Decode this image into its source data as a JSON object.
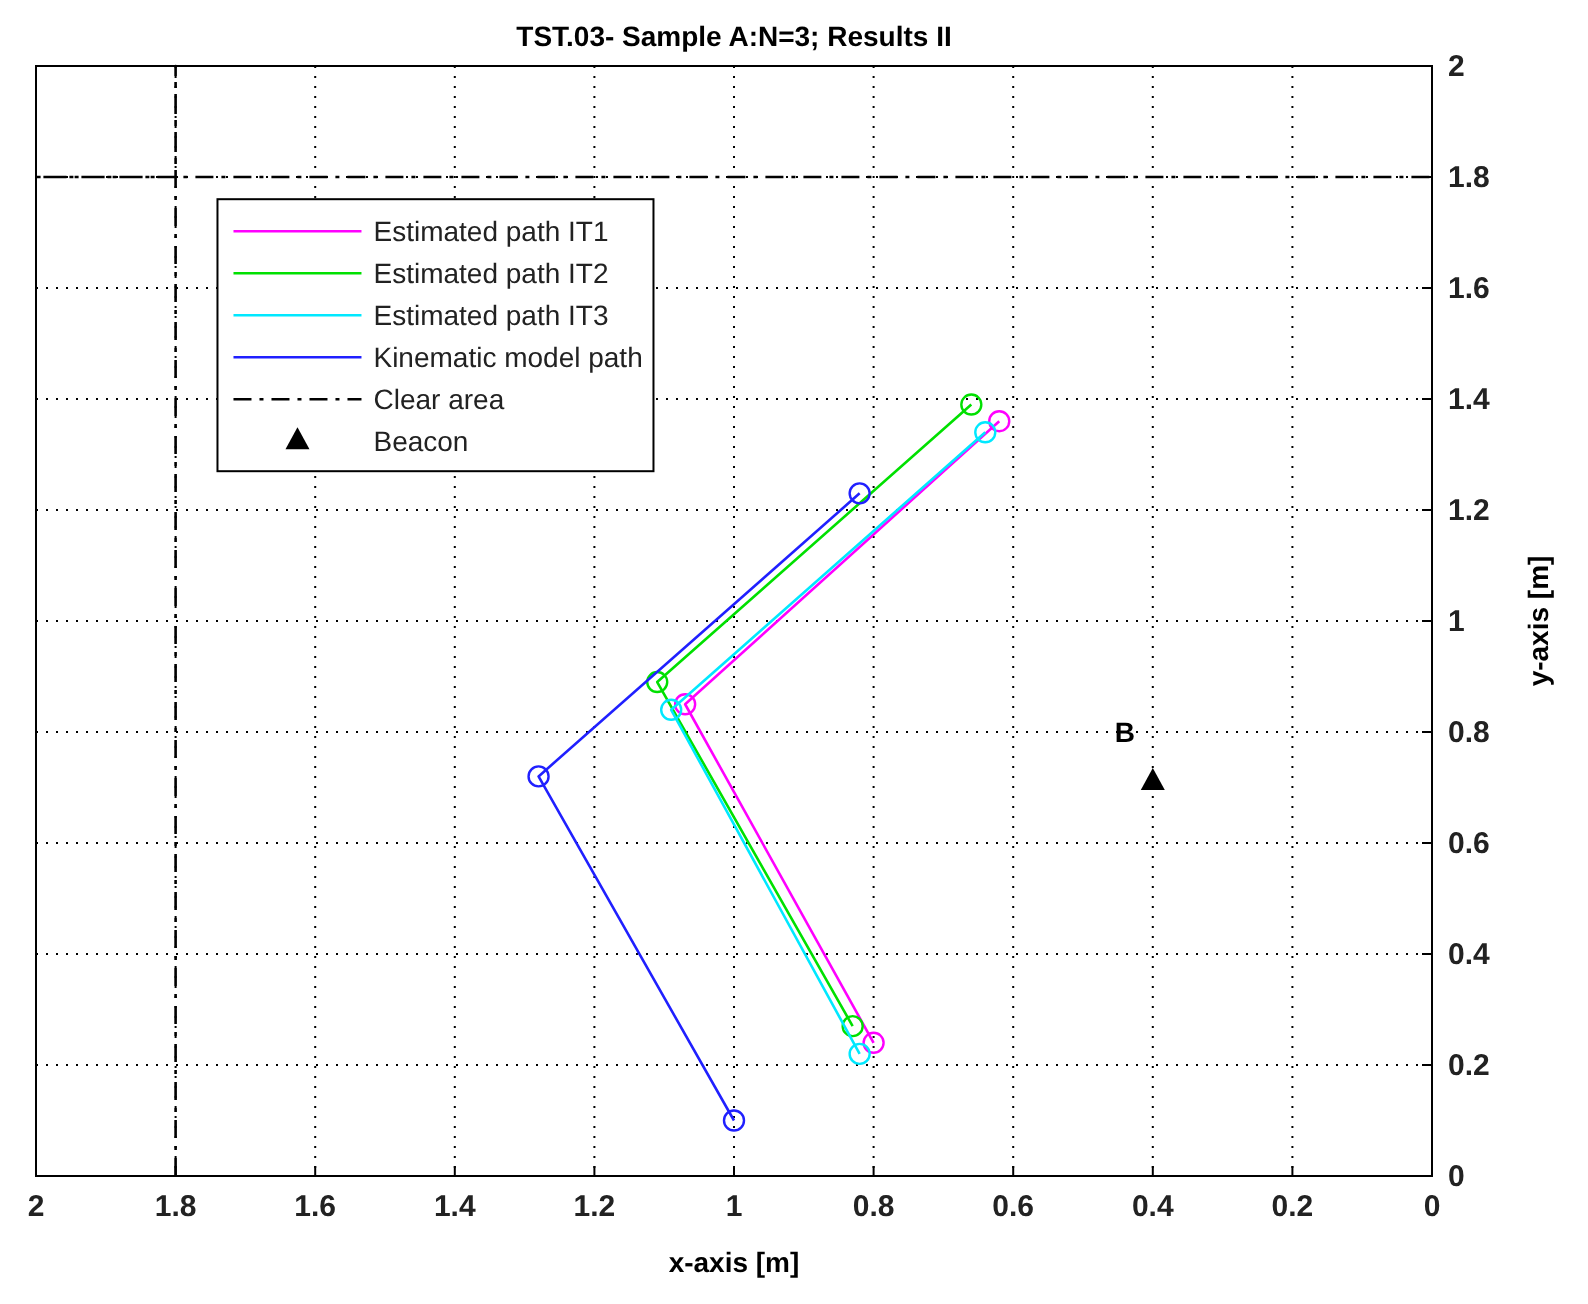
{
  "chart_data": {
    "type": "line",
    "title": "TST.03- Sample A:N=3; Results II",
    "xlabel": "x-axis [m]",
    "ylabel": "y-axis [m]",
    "xlim": [
      2,
      0
    ],
    "ylim": [
      0,
      2
    ],
    "xticks": [
      2,
      1.8,
      1.6,
      1.4,
      1.2,
      1,
      0.8,
      0.6,
      0.4,
      0.2,
      0
    ],
    "yticks": [
      0,
      0.2,
      0.4,
      0.6,
      0.8,
      1,
      1.2,
      1.4,
      1.6,
      1.8,
      2
    ],
    "grid": true,
    "legend": "top left",
    "marker": "circle",
    "line_style": "solid",
    "annotations": [
      "B"
    ],
    "series": [
      {
        "name": "Estimated path IT1",
        "color": "#ff00ff",
        "x": [
          0.8,
          1.07,
          0.62
        ],
        "values": [
          0.24,
          0.85,
          1.36
        ]
      },
      {
        "name": "Estimated path IT2",
        "color": "#00e000",
        "x": [
          0.83,
          1.11,
          0.66
        ],
        "values": [
          0.27,
          0.89,
          1.39
        ]
      },
      {
        "name": "Estimated path IT3",
        "color": "#00e8ff",
        "x": [
          0.82,
          1.09,
          0.64
        ],
        "values": [
          0.22,
          0.84,
          1.34
        ]
      },
      {
        "name": "Kinematic model path",
        "color": "#2020ff",
        "x": [
          1,
          1.28,
          0.82
        ],
        "values": [
          0.1,
          0.72,
          1.23
        ]
      },
      {
        "name": "Clear area",
        "color": "#000000",
        "marker": "none",
        "line_style": "dashdot",
        "x": [
          1.8,
          1.8,
          1.8,
          2,
          0
        ],
        "values": [
          0,
          2,
          1.8,
          1.8,
          1.8
        ]
      },
      {
        "name": "Beacon",
        "type": "scatter",
        "color": "#000000",
        "marker": "triangle",
        "x": [
          0.4
        ],
        "values": [
          0.71
        ]
      }
    ]
  }
}
